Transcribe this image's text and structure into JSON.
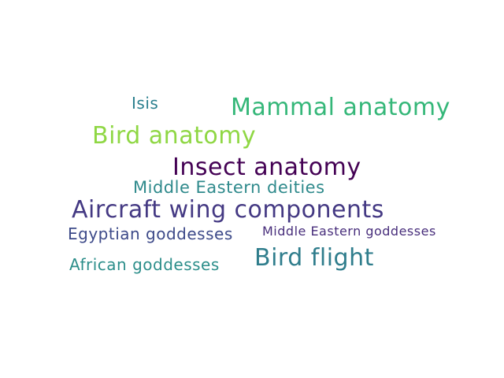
{
  "words": [
    {
      "text": "Isis",
      "color": "#2a7f8e"
    },
    {
      "text": "Mammal anatomy",
      "color": "#35b779"
    },
    {
      "text": "Bird anatomy",
      "color": "#8fd744"
    },
    {
      "text": "Insect anatomy",
      "color": "#440154"
    },
    {
      "text": "Middle Eastern deities",
      "color": "#2f8a8c"
    },
    {
      "text": "Aircraft wing components",
      "color": "#443983"
    },
    {
      "text": "Egyptian goddesses",
      "color": "#3d4a89"
    },
    {
      "text": "Middle Eastern goddesses",
      "color": "#472d7b"
    },
    {
      "text": "African goddesses",
      "color": "#2c8e8a"
    },
    {
      "text": "Bird flight",
      "color": "#2f7d8c"
    }
  ]
}
